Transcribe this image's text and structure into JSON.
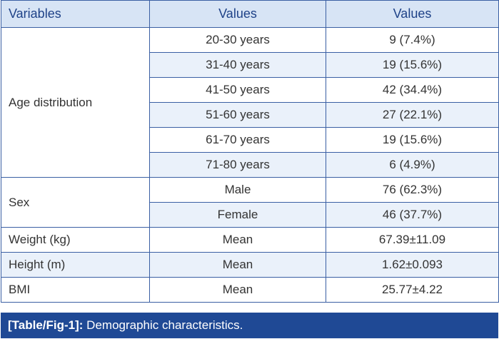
{
  "table": {
    "headers": [
      "Variables",
      "Values",
      "Values"
    ],
    "age": {
      "label": "Age distribution",
      "rows": [
        {
          "range": "20-30 years",
          "value": "9 (7.4%)"
        },
        {
          "range": "31-40 years",
          "value": "19 (15.6%)"
        },
        {
          "range": "41-50 years",
          "value": "42 (34.4%)"
        },
        {
          "range": "51-60 years",
          "value": "27 (22.1%)"
        },
        {
          "range": "61-70 years",
          "value": "19 (15.6%)"
        },
        {
          "range": "71-80 years",
          "value": "6 (4.9%)"
        }
      ]
    },
    "sex": {
      "label": "Sex",
      "rows": [
        {
          "range": "Male",
          "value": "76 (62.3%)"
        },
        {
          "range": "Female",
          "value": "46 (37.7%)"
        }
      ]
    },
    "other": [
      {
        "label": "Weight (kg)",
        "range": "Mean",
        "value": "67.39±11.09"
      },
      {
        "label": "Height (m)",
        "range": "Mean",
        "value": "1.62±0.093"
      },
      {
        "label": "BMI",
        "range": "Mean",
        "value": "25.77±4.22"
      }
    ]
  },
  "caption": {
    "tag": "[Table/Fig-1]:",
    "text": " Demographic characteristics."
  },
  "colors": {
    "header_bg": "#d7e4f5",
    "header_text": "#1e4288",
    "band_bg": "#eaf1fa",
    "border": "#3a5fa3",
    "caption_bg": "#1f4995"
  }
}
